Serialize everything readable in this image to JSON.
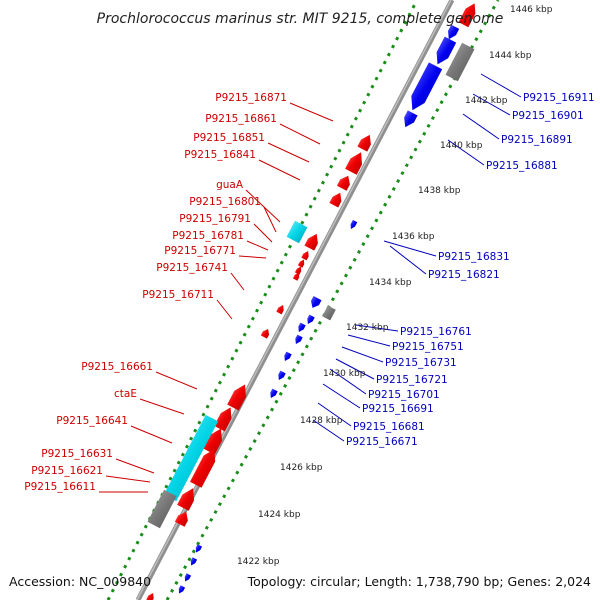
{
  "title": "Prochlorococcus marinus str. MIT 9215, complete genome",
  "accession": "Accession: NC_009840",
  "stats": "Topology: circular; Length: 1,738,790 bp; Genes: 2,024",
  "colors": {
    "forward": "#e60000",
    "reverse": "#0000e6",
    "rna": "#00ccdd",
    "other": "#777777",
    "backbone": "#888888",
    "ticks": "#118811",
    "label_forward": "#cc0000",
    "label_reverse": "#0000bb"
  },
  "kbp_labels": [
    "1446 kbp",
    "1444 kbp",
    "1442 kbp",
    "1440 kbp",
    "1438 kbp",
    "1436 kbp",
    "1434 kbp",
    "1432 kbp",
    "1430 kbp",
    "1428 kbp",
    "1426 kbp",
    "1424 kbp",
    "1422 kbp"
  ],
  "forward_labels": [
    "P9215_16871",
    "P9215_16861",
    "P9215_16851",
    "P9215_16841",
    "guaA",
    "P9215_16801",
    "P9215_16791",
    "P9215_16781",
    "P9215_16771",
    "P9215_16741",
    "P9215_16711",
    "P9215_16661",
    "ctaE",
    "P9215_16641",
    "P9215_16631",
    "P9215_16621",
    "P9215_16611"
  ],
  "reverse_labels": [
    "P9215_16911",
    "P9215_16901",
    "P9215_16891",
    "P9215_16881",
    "P9215_16831",
    "P9215_16821",
    "P9215_16761",
    "P9215_16751",
    "P9215_16731",
    "P9215_16721",
    "P9215_16701",
    "P9215_16691",
    "P9215_16681",
    "P9215_16671"
  ]
}
